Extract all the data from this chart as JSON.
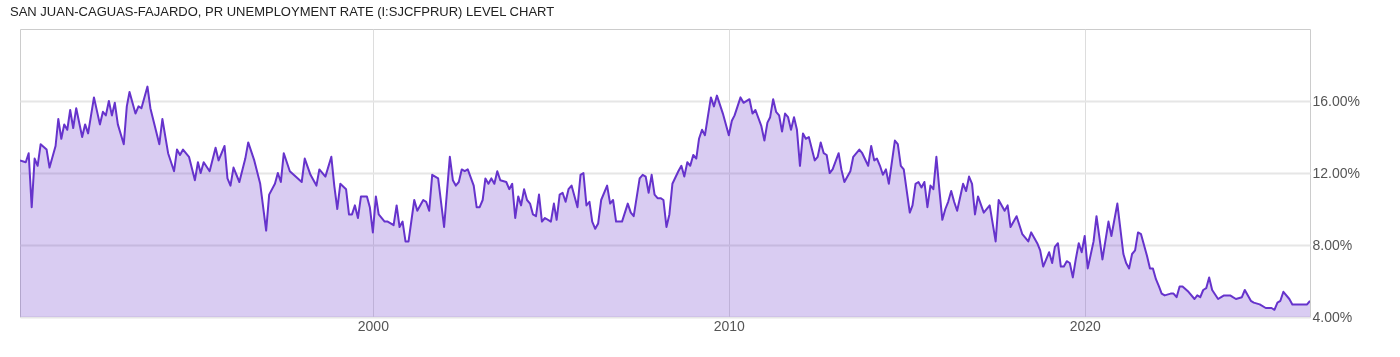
{
  "chart_data": {
    "type": "area",
    "title": "SAN JUAN-CAGUAS-FAJARDO, PR UNEMPLOYMENT RATE (I:SJCFPRUR) LEVEL CHART",
    "x": [
      "1990-02",
      "1990-04",
      "1990-05",
      "1990-06",
      "1990-07",
      "1990-08",
      "1990-09",
      "1990-11",
      "1990-12",
      "1991-02",
      "1991-03",
      "1991-04",
      "1991-05",
      "1991-06",
      "1991-07",
      "1991-08",
      "1991-09",
      "1991-11",
      "1991-12",
      "1992-01",
      "1992-03",
      "1992-05",
      "1992-06",
      "1992-07",
      "1992-08",
      "1992-09",
      "1992-10",
      "1992-11",
      "1993-01",
      "1993-02",
      "1993-03",
      "1993-05",
      "1993-06",
      "1993-07",
      "1993-09",
      "1993-10",
      "1994-01",
      "1994-02",
      "1994-04",
      "1994-06",
      "1994-07",
      "1994-08",
      "1994-09",
      "1994-11",
      "1995-01",
      "1995-02",
      "1995-03",
      "1995-04",
      "1995-06",
      "1995-08",
      "1995-09",
      "1995-11",
      "1995-12",
      "1996-01",
      "1996-02",
      "1996-04",
      "1996-06",
      "1996-07",
      "1996-09",
      "1996-11",
      "1997-01",
      "1997-02",
      "1997-04",
      "1997-05",
      "1997-06",
      "1997-07",
      "1997-09",
      "1998-01",
      "1998-02",
      "1998-04",
      "1998-06",
      "1998-07",
      "1998-09",
      "1998-11",
      "1998-12",
      "1999-01",
      "1999-02",
      "1999-04",
      "1999-05",
      "1999-06",
      "1999-07",
      "1999-08",
      "1999-09",
      "1999-11",
      "1999-12",
      "2000-01",
      "2000-02",
      "2000-03",
      "2000-05",
      "2000-06",
      "2000-08",
      "2000-09",
      "2000-10",
      "2000-11",
      "2000-12",
      "2001-01",
      "2001-03",
      "2001-04",
      "2001-06",
      "2001-07",
      "2001-08",
      "2001-09",
      "2001-11",
      "2002-01",
      "2002-03",
      "2002-04",
      "2002-05",
      "2002-06",
      "2002-07",
      "2002-08",
      "2002-09",
      "2002-11",
      "2002-12",
      "2003-01",
      "2003-02",
      "2003-03",
      "2003-04",
      "2003-05",
      "2003-06",
      "2003-07",
      "2003-08",
      "2003-10",
      "2003-11",
      "2003-12",
      "2004-01",
      "2004-02",
      "2004-03",
      "2004-04",
      "2004-05",
      "2004-06",
      "2004-07",
      "2004-08",
      "2004-09",
      "2004-10",
      "2004-11",
      "2005-01",
      "2005-02",
      "2005-03",
      "2005-04",
      "2005-05",
      "2005-06",
      "2005-07",
      "2005-08",
      "2005-10",
      "2005-11",
      "2005-12",
      "2006-01",
      "2006-02",
      "2006-03",
      "2006-04",
      "2006-05",
      "2006-06",
      "2006-08",
      "2006-09",
      "2006-10",
      "2006-11",
      "2007-01",
      "2007-03",
      "2007-04",
      "2007-05",
      "2007-07",
      "2007-08",
      "2007-09",
      "2007-10",
      "2007-11",
      "2007-12",
      "2008-01",
      "2008-02",
      "2008-03",
      "2008-04",
      "2008-05",
      "2008-06",
      "2008-08",
      "2008-09",
      "2008-10",
      "2008-11",
      "2008-12",
      "2009-01",
      "2009-02",
      "2009-03",
      "2009-04",
      "2009-05",
      "2009-07",
      "2009-08",
      "2009-09",
      "2009-11",
      "2010-01",
      "2010-02",
      "2010-03",
      "2010-05",
      "2010-06",
      "2010-08",
      "2010-09",
      "2010-10",
      "2010-12",
      "2011-01",
      "2011-02",
      "2011-03",
      "2011-04",
      "2011-05",
      "2011-06",
      "2011-07",
      "2011-08",
      "2011-09",
      "2011-10",
      "2011-11",
      "2011-12",
      "2012-01",
      "2012-02",
      "2012-03",
      "2012-04",
      "2012-06",
      "2012-07",
      "2012-08",
      "2012-09",
      "2012-10",
      "2012-11",
      "2012-12",
      "2013-02",
      "2013-03",
      "2013-04",
      "2013-06",
      "2013-07",
      "2013-09",
      "2013-10",
      "2013-12",
      "2014-01",
      "2014-02",
      "2014-03",
      "2014-04",
      "2014-05",
      "2014-06",
      "2014-07",
      "2014-09",
      "2014-10",
      "2014-11",
      "2014-12",
      "2015-02",
      "2015-03",
      "2015-04",
      "2015-05",
      "2015-06",
      "2015-07",
      "2015-08",
      "2015-09",
      "2015-10",
      "2015-11",
      "2015-12",
      "2016-01",
      "2016-02",
      "2016-03",
      "2016-04",
      "2016-05",
      "2016-06",
      "2016-08",
      "2016-09",
      "2016-10",
      "2016-11",
      "2016-12",
      "2017-01",
      "2017-03",
      "2017-05",
      "2017-07",
      "2017-08",
      "2017-10",
      "2017-11",
      "2017-12",
      "2018-02",
      "2018-04",
      "2018-06",
      "2018-07",
      "2018-09",
      "2018-10",
      "2018-11",
      "2019-01",
      "2019-02",
      "2019-03",
      "2019-04",
      "2019-05",
      "2019-06",
      "2019-07",
      "2019-08",
      "2019-09",
      "2019-10",
      "2019-11",
      "2019-12",
      "2020-01",
      "2020-02",
      "2020-04",
      "2020-05",
      "2020-07",
      "2020-09",
      "2020-10",
      "2020-12",
      "2021-02",
      "2021-03",
      "2021-04",
      "2021-05",
      "2021-06",
      "2021-07",
      "2021-08",
      "2021-10",
      "2021-11",
      "2021-12",
      "2022-01",
      "2022-02",
      "2022-03",
      "2022-04",
      "2022-06",
      "2022-07",
      "2022-08",
      "2022-09",
      "2022-10",
      "2022-12",
      "2023-02",
      "2023-03",
      "2023-04",
      "2023-05",
      "2023-06",
      "2023-07",
      "2023-08",
      "2023-10",
      "2023-11",
      "2023-12",
      "2024-02",
      "2024-03",
      "2024-04",
      "2024-06",
      "2024-07",
      "2024-09",
      "2024-10",
      "2024-12",
      "2025-02",
      "2025-04",
      "2025-05",
      "2025-06",
      "2025-07",
      "2025-08",
      "2025-10",
      "2025-11",
      "2026-01",
      "2026-03",
      "2026-04",
      "2026-05"
    ],
    "series": [
      {
        "color": "#6633cc",
        "values": [
          12.7,
          12.6,
          13.1,
          10.1,
          12.8,
          12.4,
          13.6,
          13.3,
          12.3,
          13.5,
          15.0,
          13.9,
          14.7,
          14.4,
          15.5,
          14.5,
          15.6,
          14.0,
          14.7,
          14.2,
          16.2,
          14.7,
          15.4,
          15.2,
          16.0,
          15.2,
          15.9,
          14.7,
          13.6,
          15.7,
          16.5,
          15.3,
          15.7,
          15.6,
          16.8,
          15.6,
          13.6,
          15.0,
          13.1,
          12.1,
          13.3,
          13.0,
          13.3,
          12.9,
          11.6,
          12.6,
          12.0,
          12.6,
          12.1,
          13.4,
          12.7,
          13.5,
          11.7,
          11.3,
          12.3,
          11.5,
          12.8,
          13.7,
          12.7,
          11.4,
          8.8,
          10.8,
          11.4,
          12.0,
          11.5,
          13.1,
          12.1,
          11.5,
          12.8,
          11.9,
          11.3,
          12.2,
          11.8,
          12.9,
          11.3,
          10.0,
          11.4,
          11.1,
          9.7,
          9.7,
          10.2,
          9.5,
          10.7,
          10.7,
          10.1,
          8.7,
          10.7,
          9.7,
          9.3,
          9.3,
          9.1,
          10.2,
          9.0,
          9.3,
          8.2,
          8.2,
          10.5,
          9.9,
          10.5,
          10.4,
          9.9,
          11.9,
          11.7,
          9.0,
          12.9,
          11.6,
          11.3,
          11.5,
          12.2,
          12.1,
          12.2,
          11.3,
          10.1,
          10.1,
          10.5,
          11.7,
          11.4,
          11.7,
          11.4,
          12.1,
          11.6,
          11.5,
          11.1,
          11.4,
          9.5,
          10.7,
          10.2,
          11.1,
          10.5,
          10.3,
          9.7,
          9.6,
          10.8,
          9.3,
          9.5,
          9.3,
          10.3,
          9.4,
          10.8,
          10.9,
          10.4,
          11.1,
          11.3,
          10.1,
          11.9,
          12.0,
          10.2,
          10.4,
          9.3,
          8.9,
          9.2,
          10.5,
          11.3,
          10.3,
          10.5,
          9.3,
          9.3,
          10.3,
          9.8,
          9.6,
          11.7,
          11.9,
          11.8,
          10.9,
          11.9,
          10.8,
          10.6,
          10.6,
          10.5,
          9.0,
          9.7,
          11.4,
          12.1,
          12.4,
          11.8,
          12.6,
          12.4,
          13.0,
          12.8,
          13.9,
          14.4,
          14.1,
          16.2,
          15.7,
          16.3,
          15.3,
          14.1,
          14.9,
          15.2,
          16.2,
          15.9,
          16.1,
          15.3,
          15.5,
          14.6,
          13.8,
          14.8,
          15.1,
          16.1,
          15.4,
          15.2,
          14.3,
          15.3,
          15.1,
          14.4,
          15.1,
          14.4,
          12.4,
          14.2,
          13.9,
          14.0,
          12.7,
          12.9,
          13.7,
          13.1,
          13.0,
          12.0,
          12.2,
          13.1,
          12.2,
          11.5,
          12.1,
          12.9,
          13.3,
          13.1,
          12.4,
          13.5,
          12.7,
          12.8,
          12.4,
          11.9,
          12.2,
          11.4,
          13.8,
          13.6,
          12.4,
          12.2,
          9.8,
          10.2,
          11.4,
          11.5,
          11.2,
          11.5,
          10.1,
          11.3,
          11.1,
          12.9,
          11.1,
          9.4,
          10.0,
          10.4,
          11.0,
          10.4,
          9.9,
          11.4,
          11.0,
          11.8,
          11.4,
          9.7,
          10.7,
          9.8,
          10.2,
          8.2,
          10.5,
          9.9,
          10.2,
          9.0,
          9.6,
          8.6,
          8.2,
          8.7,
          8.1,
          7.7,
          6.8,
          7.6,
          7.0,
          7.9,
          8.1,
          6.8,
          6.8,
          7.1,
          7.0,
          6.2,
          7.2,
          8.1,
          7.6,
          8.5,
          6.7,
          8.2,
          9.6,
          7.2,
          9.3,
          8.5,
          10.3,
          7.5,
          7.0,
          6.7,
          7.5,
          7.7,
          8.7,
          8.6,
          7.4,
          6.7,
          6.7,
          6.1,
          5.7,
          5.3,
          5.2,
          5.3,
          5.3,
          5.1,
          5.7,
          5.7,
          5.4,
          5.0,
          5.2,
          5.1,
          5.5,
          5.6,
          6.2,
          5.5,
          5.0,
          5.1,
          5.2,
          5.2,
          5.1,
          5.0,
          5.1,
          5.5,
          4.9,
          4.8,
          4.7,
          4.5,
          4.5,
          4.4,
          4.8,
          4.9,
          5.4,
          5.0,
          4.7,
          4.7,
          4.7,
          4.7,
          4.9
        ]
      }
    ],
    "xlim": [
      "1990-02",
      "2026-05"
    ],
    "xticks": [
      "2000",
      "2010",
      "2020"
    ],
    "ylim": [
      4,
      20
    ],
    "yticks": [
      {
        "value": 4,
        "label": "4.00%"
      },
      {
        "value": 8,
        "label": "8.00%"
      },
      {
        "value": 12,
        "label": "12.00%"
      },
      {
        "value": 16,
        "label": "16.00%"
      }
    ],
    "grid": true,
    "legend": false,
    "line_style": "solid",
    "marker": "none"
  }
}
